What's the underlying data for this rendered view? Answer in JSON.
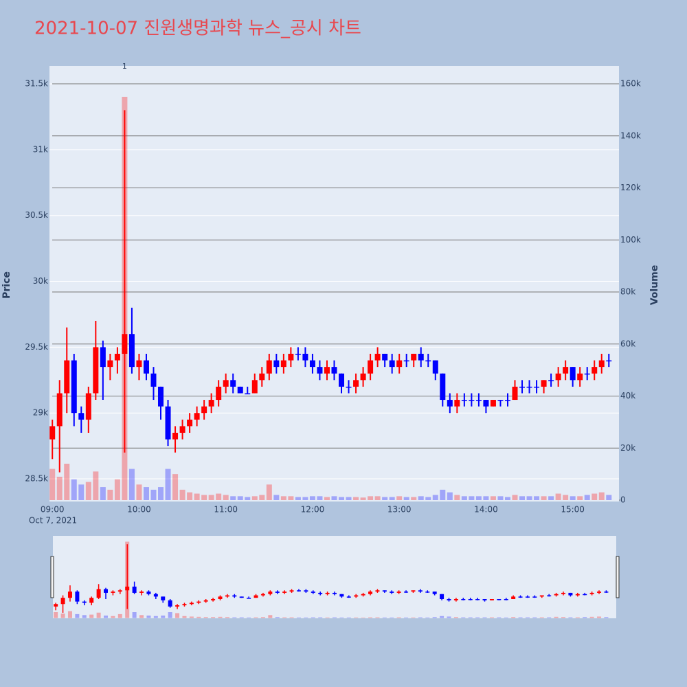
{
  "chart_data": {
    "type": "candlestick",
    "title": "2021-10-07 진원생명과학 뉴스_공시 차트",
    "y_label": "Price",
    "y2_label": "Volume",
    "x_date_label": "Oct 7, 2021",
    "increasing_color": "#ff0000",
    "decreasing_color": "#0000ff",
    "annotation": {
      "text": "1",
      "x": "09:50"
    },
    "xlim": [
      "08:58",
      "15:32"
    ],
    "xticks": [
      "09:00",
      "10:00",
      "11:00",
      "12:00",
      "13:00",
      "14:00",
      "15:00"
    ],
    "ylim": [
      28328,
      31636
    ],
    "yticks": [
      {
        "value": 28500,
        "label": "28.5k"
      },
      {
        "value": 29000,
        "label": "29k"
      },
      {
        "value": 29500,
        "label": "29.5k"
      },
      {
        "value": 30000,
        "label": "30k"
      },
      {
        "value": 30500,
        "label": "30.5k"
      },
      {
        "value": 31000,
        "label": "31k"
      },
      {
        "value": 31500,
        "label": "31.5k"
      }
    ],
    "y2lim": [
      -528,
      166865
    ],
    "y2ticks": [
      0,
      {
        "value": 20000,
        "label": "20k"
      },
      {
        "value": 40000,
        "label": "40k"
      },
      {
        "value": 60000,
        "label": "60k"
      },
      {
        "value": 80000,
        "label": "80k"
      },
      {
        "value": 100000,
        "label": "100k"
      },
      {
        "value": 120000,
        "label": "120k"
      },
      {
        "value": 140000,
        "label": "140k"
      },
      {
        "value": 160000,
        "label": "160k"
      }
    ],
    "x": [
      "09:00",
      "09:05",
      "09:10",
      "09:15",
      "09:20",
      "09:25",
      "09:30",
      "09:35",
      "09:40",
      "09:45",
      "09:50",
      "09:55",
      "10:00",
      "10:05",
      "10:10",
      "10:15",
      "10:20",
      "10:25",
      "10:30",
      "10:35",
      "10:40",
      "10:45",
      "10:50",
      "10:55",
      "11:00",
      "11:05",
      "11:10",
      "11:15",
      "11:20",
      "11:25",
      "11:30",
      "11:35",
      "11:40",
      "11:45",
      "11:50",
      "11:55",
      "12:00",
      "12:05",
      "12:10",
      "12:15",
      "12:20",
      "12:25",
      "12:30",
      "12:35",
      "12:40",
      "12:45",
      "12:50",
      "12:55",
      "13:00",
      "13:05",
      "13:10",
      "13:15",
      "13:20",
      "13:25",
      "13:30",
      "13:35",
      "13:40",
      "13:45",
      "13:50",
      "13:55",
      "14:00",
      "14:05",
      "14:10",
      "14:15",
      "14:20",
      "14:25",
      "14:30",
      "14:35",
      "14:40",
      "14:45",
      "14:50",
      "14:55",
      "15:00",
      "15:05",
      "15:10",
      "15:15",
      "15:20",
      "15:25"
    ],
    "open": [
      28800,
      28900,
      29150,
      29400,
      29000,
      28950,
      29150,
      29500,
      29350,
      29400,
      29450,
      29600,
      29350,
      29400,
      29300,
      29200,
      29050,
      28800,
      28850,
      28900,
      28950,
      29000,
      29050,
      29100,
      29200,
      29250,
      29200,
      29150,
      29150,
      29250,
      29300,
      29400,
      29350,
      29400,
      29450,
      29450,
      29400,
      29350,
      29300,
      29350,
      29300,
      29200,
      29200,
      29250,
      29300,
      29400,
      29450,
      29400,
      29350,
      29400,
      29400,
      29450,
      29400,
      29400,
      29300,
      29100,
      29050,
      29100,
      29100,
      29100,
      29100,
      29050,
      29100,
      29100,
      29100,
      29200,
      29200,
      29200,
      29200,
      29250,
      29250,
      29300,
      29350,
      29250,
      29300,
      29300,
      29350,
      29400
    ],
    "high": [
      28950,
      29250,
      29650,
      29450,
      29050,
      29200,
      29700,
      29550,
      29450,
      29500,
      31300,
      29800,
      29450,
      29450,
      29350,
      29200,
      29100,
      28900,
      28950,
      29000,
      29050,
      29100,
      29150,
      29250,
      29300,
      29300,
      29200,
      29200,
      29300,
      29350,
      29450,
      29450,
      29450,
      29500,
      29500,
      29500,
      29450,
      29400,
      29400,
      29400,
      29300,
      29250,
      29300,
      29350,
      29450,
      29500,
      29450,
      29450,
      29450,
      29450,
      29450,
      29500,
      29450,
      29400,
      29300,
      29150,
      29150,
      29150,
      29150,
      29150,
      29100,
      29100,
      29100,
      29150,
      29250,
      29250,
      29250,
      29250,
      29250,
      29300,
      29350,
      29400,
      29350,
      29350,
      29350,
      29400,
      29450,
      29450
    ],
    "low": [
      28650,
      28550,
      29000,
      28900,
      28850,
      28850,
      29100,
      29100,
      29250,
      29300,
      28700,
      29300,
      29250,
      29250,
      29100,
      28950,
      28750,
      28700,
      28800,
      28850,
      28900,
      28950,
      29000,
      29050,
      29150,
      29150,
      29150,
      29150,
      29150,
      29200,
      29250,
      29300,
      29300,
      29350,
      29400,
      29350,
      29300,
      29250,
      29250,
      29250,
      29150,
      29150,
      29150,
      29200,
      29250,
      29350,
      29350,
      29300,
      29300,
      29350,
      29350,
      29350,
      29350,
      29250,
      29050,
      29000,
      29000,
      29050,
      29050,
      29050,
      29000,
      29050,
      29050,
      29050,
      29100,
      29150,
      29150,
      29150,
      29150,
      29200,
      29200,
      29250,
      29200,
      29200,
      29250,
      29250,
      29300,
      29350
    ],
    "close": [
      28900,
      29150,
      29400,
      29000,
      28950,
      29150,
      29500,
      29350,
      29400,
      29450,
      29600,
      29350,
      29400,
      29300,
      29200,
      29050,
      28800,
      28850,
      28900,
      28950,
      29000,
      29050,
      29100,
      29200,
      29250,
      29200,
      29150,
      29150,
      29250,
      29300,
      29400,
      29350,
      29400,
      29450,
      29450,
      29400,
      29350,
      29300,
      29350,
      29300,
      29200,
      29200,
      29250,
      29300,
      29400,
      29450,
      29400,
      29350,
      29400,
      29400,
      29450,
      29400,
      29400,
      29300,
      29100,
      29050,
      29100,
      29100,
      29100,
      29100,
      29050,
      29100,
      29100,
      29100,
      29200,
      29200,
      29200,
      29200,
      29250,
      29250,
      29300,
      29350,
      29250,
      29300,
      29300,
      29350,
      29400,
      29400
    ],
    "volume": [
      12000,
      9000,
      14000,
      8000,
      6000,
      7000,
      11000,
      5000,
      4000,
      8000,
      155000,
      12000,
      6000,
      5000,
      4000,
      5000,
      12000,
      10000,
      4000,
      3000,
      2500,
      2000,
      2000,
      2500,
      2000,
      1500,
      1500,
      1200,
      1500,
      2000,
      6000,
      2000,
      1500,
      1500,
      1200,
      1200,
      1500,
      1500,
      1200,
      1500,
      1200,
      1200,
      1200,
      1000,
      1500,
      1500,
      1200,
      1200,
      1500,
      1200,
      1200,
      1500,
      1200,
      2000,
      4000,
      3000,
      2000,
      1500,
      1500,
      1500,
      1500,
      1500,
      1500,
      1200,
      2000,
      1500,
      1500,
      1500,
      1500,
      1500,
      2500,
      2000,
      1500,
      1500,
      2000,
      2500,
      3000,
      2000
    ]
  }
}
